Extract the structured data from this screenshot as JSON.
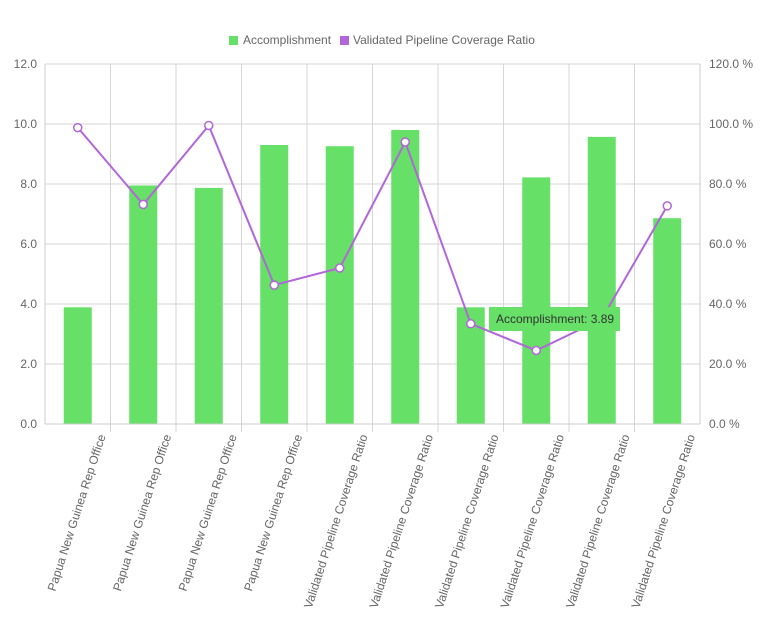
{
  "chart_data": {
    "type": "bar",
    "categories": [
      "Papua New Guinea Rep Office",
      "Papua New Guinea Rep Office",
      "Papua New Guinea Rep Office",
      "Papua New Guinea Rep Office",
      "Validated Pipeline Coverage Ratio",
      "Validated Pipeline Coverage Ratio",
      "Validated Pipeline Coverage Ratio",
      "Validated Pipeline Coverage Ratio",
      "Validated Pipeline Coverage Ratio",
      "Validated Pipeline Coverage Ratio"
    ],
    "series": [
      {
        "name": "Accomplishment",
        "type": "bar",
        "axis": "left",
        "color": "#66e066",
        "values": [
          3.89,
          7.95,
          7.87,
          9.3,
          9.26,
          9.8,
          3.89,
          8.22,
          9.57,
          6.86
        ]
      },
      {
        "name": "Validated Pipeline Coverage Ratio",
        "type": "line",
        "axis": "right",
        "color": "#b266d9",
        "values": [
          98.8,
          73.2,
          99.5,
          46.3,
          52.0,
          94.0,
          33.4,
          24.5,
          35.0,
          72.7
        ]
      }
    ],
    "left_axis": {
      "min": 0,
      "max": 12,
      "ticks": [
        "0.0",
        "2.0",
        "4.0",
        "6.0",
        "8.0",
        "10.0",
        "12.0"
      ]
    },
    "right_axis": {
      "min": 0,
      "max": 120,
      "ticks": [
        "0.0 %",
        "20.0 %",
        "40.0 %",
        "60.0 %",
        "80.0 %",
        "100.0 %",
        "120.0 %"
      ]
    },
    "grid": true,
    "legend_position": "top-center",
    "tooltip": {
      "text": "Accomplishment: 3.89"
    }
  }
}
